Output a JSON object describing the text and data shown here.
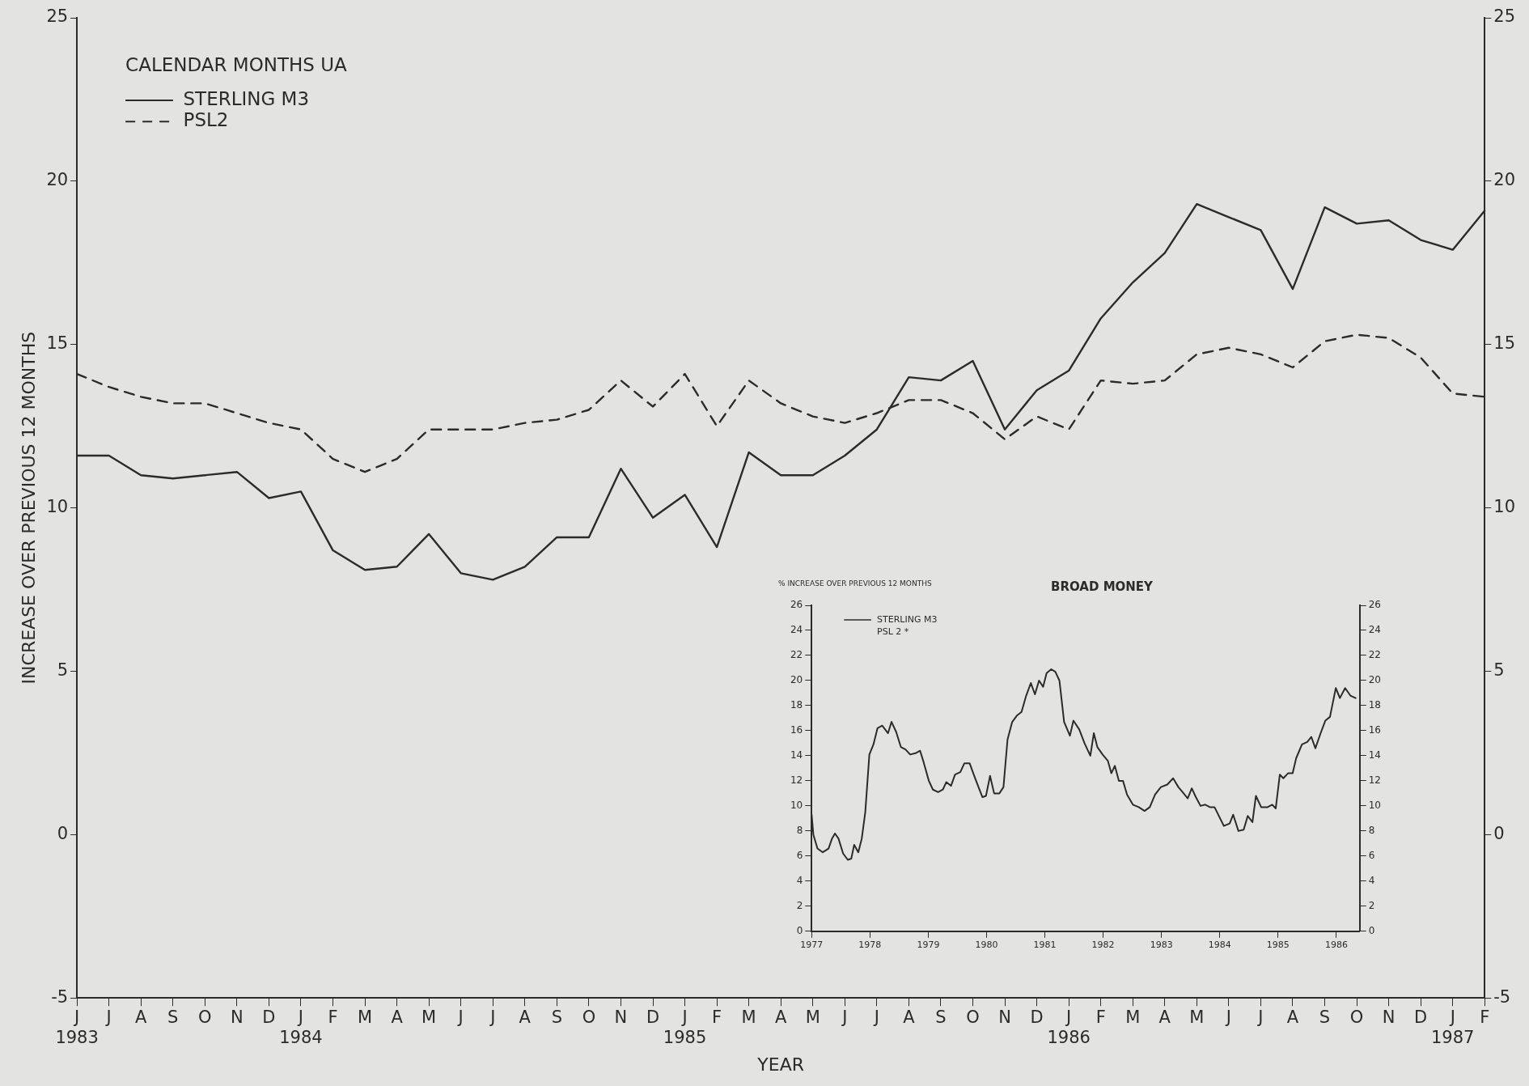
{
  "chart_data": [
    {
      "type": "line",
      "xlabel": "YEAR",
      "ylabel": "INCREASE OVER PREVIOUS 12 MONTHS",
      "legend_title": "CALENDAR MONTHS UA",
      "legend": "top left",
      "grid": false,
      "categories": [
        "J\n1983",
        "J",
        "A",
        "S",
        "O",
        "N",
        "D",
        "J\n1984",
        "F",
        "M",
        "A",
        "M",
        "J",
        "J",
        "A",
        "S",
        "O",
        "N",
        "D",
        "J\n1985",
        "F",
        "M",
        "A",
        "M",
        "J",
        "J",
        "A",
        "S",
        "O",
        "N",
        "D",
        "J\n1986",
        "F",
        "M",
        "A",
        "M",
        "J",
        "J",
        "A",
        "S",
        "O",
        "N",
        "D",
        "J\n1987",
        "F"
      ],
      "series": [
        {
          "name": "STERLING M3",
          "color": "#2b2b2b",
          "line_style": "solid",
          "values": [
            11.6,
            11.6,
            11.0,
            10.9,
            11.0,
            11.1,
            10.3,
            10.5,
            8.7,
            8.1,
            8.2,
            9.2,
            8.0,
            7.8,
            8.2,
            9.1,
            9.1,
            11.2,
            9.7,
            10.4,
            8.8,
            11.7,
            11.0,
            11.0,
            11.6,
            12.4,
            14.0,
            13.9,
            14.5,
            12.4,
            13.6,
            14.2,
            15.8,
            16.9,
            17.8,
            19.3,
            18.9,
            18.5,
            16.7,
            19.2,
            18.7,
            18.8,
            18.2,
            17.9,
            19.1
          ]
        },
        {
          "name": "PSL2",
          "color": "#2b2b2b",
          "line_style": "dashed",
          "values": [
            14.1,
            13.7,
            13.4,
            13.2,
            13.2,
            12.9,
            12.6,
            12.4,
            11.5,
            11.1,
            11.5,
            12.4,
            12.4,
            12.4,
            12.6,
            12.7,
            13.0,
            13.9,
            13.1,
            14.1,
            12.5,
            13.9,
            13.2,
            12.8,
            12.6,
            12.9,
            13.3,
            13.3,
            12.9,
            12.1,
            12.8,
            12.4,
            13.9,
            13.8,
            13.9,
            14.7,
            14.9,
            14.7,
            14.3,
            15.1,
            15.3,
            15.2,
            14.6,
            13.5,
            13.4
          ]
        }
      ],
      "ylim": [
        -5,
        25
      ],
      "yticks": [
        -5,
        0,
        5,
        10,
        15,
        20,
        25
      ],
      "y2lim": [
        -5,
        25
      ],
      "y2ticks": [
        -5,
        0,
        5,
        10,
        15,
        20,
        25
      ]
    },
    {
      "type": "line",
      "title": "BROAD MONEY",
      "ylabel": "% INCREASE OVER PREVIOUS 12 MONTHS",
      "legend": "top left",
      "grid": false,
      "annotations": [
        "PSL 2 *"
      ],
      "series": [
        {
          "name": "STERLING M3",
          "color": "#2b2b2b",
          "line_style": "solid",
          "x": [
            1977.0,
            1977.03,
            1977.1,
            1977.19,
            1977.29,
            1977.35,
            1977.4,
            1977.46,
            1977.54,
            1977.62,
            1977.68,
            1977.73,
            1977.8,
            1977.86,
            1977.92,
            1977.99,
            1978.06,
            1978.13,
            1978.21,
            1978.31,
            1978.37,
            1978.45,
            1978.53,
            1978.61,
            1978.69,
            1978.78,
            1978.86,
            1978.92,
            1979.01,
            1979.08,
            1979.17,
            1979.25,
            1979.31,
            1979.39,
            1979.46,
            1979.55,
            1979.62,
            1979.71,
            1979.78,
            1979.87,
            1979.93,
            1979.99,
            1980.06,
            1980.13,
            1980.22,
            1980.29,
            1980.36,
            1980.44,
            1980.52,
            1980.6,
            1980.68,
            1980.76,
            1980.83,
            1980.9,
            1980.97,
            1981.03,
            1981.11,
            1981.18,
            1981.25,
            1981.33,
            1981.43,
            1981.49,
            1981.59,
            1981.68,
            1981.78,
            1981.84,
            1981.9,
            1981.99,
            1982.08,
            1982.14,
            1982.2,
            1982.27,
            1982.34,
            1982.41,
            1982.51,
            1982.61,
            1982.71,
            1982.8,
            1982.89,
            1982.99,
            1983.1,
            1983.2,
            1983.29,
            1983.38,
            1983.45,
            1983.52,
            1983.59,
            1983.67,
            1983.75,
            1983.83,
            1983.91,
            1984.07,
            1984.17,
            1984.23,
            1984.32,
            1984.41,
            1984.48,
            1984.56,
            1984.62,
            1984.71,
            1984.82,
            1984.9,
            1984.96,
            1985.03,
            1985.09,
            1985.17,
            1985.25,
            1985.31,
            1985.41,
            1985.5,
            1985.57,
            1985.64,
            1985.73,
            1985.81,
            1985.89,
            1985.99,
            1986.06,
            1986.15,
            1986.24,
            1986.33
          ],
          "values": [
            9.3,
            7.7,
            6.6,
            6.3,
            6.6,
            7.4,
            7.8,
            7.4,
            6.2,
            5.7,
            5.8,
            6.9,
            6.3,
            7.4,
            9.5,
            14.1,
            14.9,
            16.2,
            16.4,
            15.8,
            16.7,
            15.9,
            14.7,
            14.5,
            14.1,
            14.2,
            14.4,
            13.5,
            12.0,
            11.3,
            11.1,
            11.3,
            11.9,
            11.6,
            12.5,
            12.7,
            13.4,
            13.4,
            12.5,
            11.4,
            10.7,
            10.8,
            12.4,
            11.0,
            11.0,
            11.5,
            15.3,
            16.7,
            17.2,
            17.5,
            18.8,
            19.8,
            18.9,
            20.0,
            19.5,
            20.6,
            20.9,
            20.7,
            20.0,
            16.7,
            15.6,
            16.8,
            16.1,
            15.0,
            14.0,
            15.8,
            14.7,
            14.1,
            13.6,
            12.6,
            13.2,
            12.0,
            12.0,
            10.9,
            10.1,
            9.9,
            9.6,
            9.9,
            10.9,
            11.5,
            11.7,
            12.2,
            11.5,
            11.0,
            10.6,
            11.4,
            10.7,
            10.0,
            10.1,
            9.9,
            9.9,
            8.4,
            8.6,
            9.3,
            8.0,
            8.1,
            9.2,
            8.7,
            10.8,
            9.9,
            9.9,
            10.1,
            9.8,
            12.5,
            12.2,
            12.6,
            12.6,
            13.8,
            14.9,
            15.1,
            15.5,
            14.6,
            15.8,
            16.8,
            17.1,
            19.4,
            18.6,
            19.4,
            18.8,
            18.6
          ]
        }
      ],
      "xlim": [
        1977,
        1986.4
      ],
      "xticks": [
        1977,
        1978,
        1979,
        1980,
        1981,
        1982,
        1983,
        1984,
        1985,
        1986
      ],
      "ylim": [
        0,
        26
      ],
      "yticks": [
        0,
        2,
        4,
        6,
        8,
        10,
        12,
        14,
        16,
        18,
        20,
        22,
        24,
        26
      ],
      "y2lim": [
        0,
        26
      ],
      "y2ticks": [
        0,
        2,
        4,
        6,
        8,
        10,
        12,
        14,
        16,
        18,
        20,
        22,
        24,
        26
      ]
    }
  ]
}
